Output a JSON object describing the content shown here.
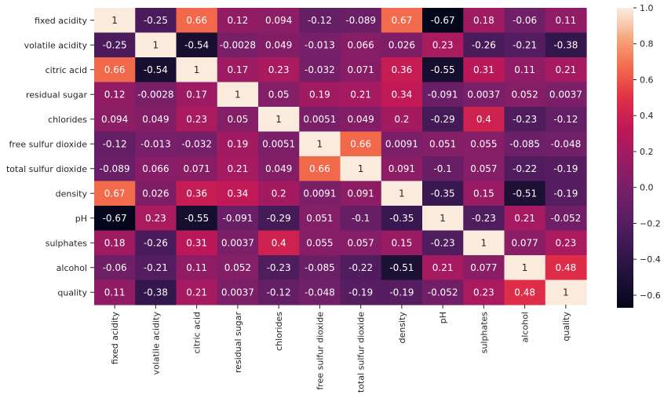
{
  "chart_data": {
    "type": "heatmap",
    "title": "",
    "xlabel": "",
    "ylabel": "",
    "labels": [
      "fixed acidity",
      "volatile acidity",
      "citric acid",
      "residual sugar",
      "chlorides",
      "free sulfur dioxide",
      "total sulfur dioxide",
      "density",
      "pH",
      "sulphates",
      "alcohol",
      "quality"
    ],
    "matrix": [
      [
        1,
        -0.25,
        0.66,
        0.12,
        0.094,
        -0.12,
        -0.089,
        0.67,
        -0.67,
        0.18,
        -0.06,
        0.11
      ],
      [
        -0.25,
        1,
        -0.54,
        -0.0028,
        0.049,
        -0.013,
        0.066,
        0.026,
        0.23,
        -0.26,
        -0.21,
        -0.38
      ],
      [
        0.66,
        -0.54,
        1,
        0.17,
        0.23,
        -0.032,
        0.071,
        0.36,
        -0.55,
        0.31,
        0.11,
        0.21
      ],
      [
        0.12,
        -0.0028,
        0.17,
        1,
        0.05,
        0.19,
        0.21,
        0.34,
        -0.091,
        0.0037,
        0.052,
        0.0037
      ],
      [
        0.094,
        0.049,
        0.23,
        0.05,
        1,
        0.0051,
        0.049,
        0.2,
        -0.29,
        0.4,
        -0.23,
        -0.12
      ],
      [
        -0.12,
        -0.013,
        -0.032,
        0.19,
        0.0051,
        1,
        0.66,
        0.0091,
        0.051,
        0.055,
        -0.085,
        -0.048
      ],
      [
        -0.089,
        0.066,
        0.071,
        0.21,
        0.049,
        0.66,
        1,
        0.091,
        -0.1,
        0.057,
        -0.22,
        -0.19
      ],
      [
        0.67,
        0.026,
        0.36,
        0.34,
        0.2,
        0.0091,
        0.091,
        1,
        -0.35,
        0.15,
        -0.51,
        -0.19
      ],
      [
        -0.67,
        0.23,
        -0.55,
        -0.091,
        -0.29,
        0.051,
        -0.1,
        -0.35,
        1,
        -0.23,
        0.21,
        -0.052
      ],
      [
        0.18,
        -0.26,
        0.31,
        0.0037,
        0.4,
        0.055,
        0.057,
        0.15,
        -0.23,
        1,
        0.077,
        0.23
      ],
      [
        -0.06,
        -0.21,
        0.11,
        0.052,
        -0.23,
        -0.085,
        -0.22,
        -0.51,
        0.21,
        0.077,
        1,
        0.48
      ],
      [
        0.11,
        -0.38,
        0.21,
        0.0037,
        -0.12,
        -0.048,
        -0.19,
        -0.19,
        -0.052,
        0.23,
        0.48,
        1
      ]
    ],
    "colorbar": {
      "range": [
        -0.67,
        1.0
      ],
      "ticks": [
        1.0,
        0.8,
        0.6,
        0.4,
        0.2,
        0.0,
        -0.2,
        -0.4,
        -0.6
      ],
      "tick_labels": [
        "1.0",
        "0.8",
        "0.6",
        "0.4",
        "0.2",
        "0.0",
        "−0.2",
        "−0.4",
        "−0.6"
      ],
      "colormap": "rocket"
    }
  }
}
